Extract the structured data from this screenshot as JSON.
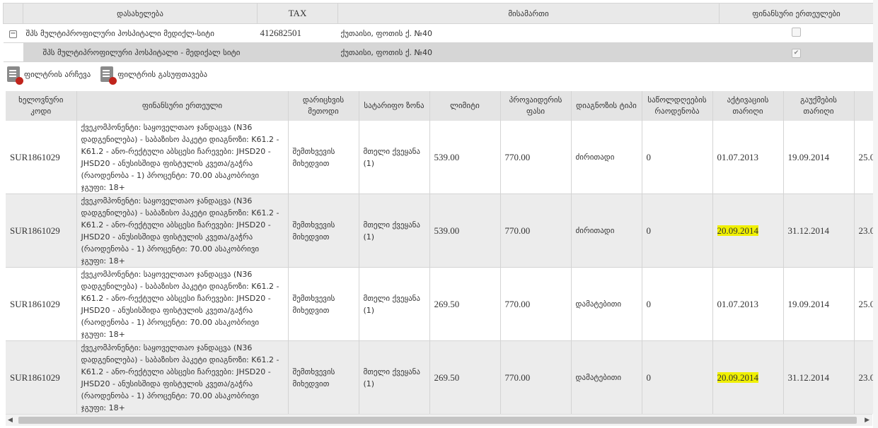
{
  "top_table": {
    "headers": [
      "დასახელება",
      "TAX",
      "მისამართი",
      "ფინანსური ერთეულები"
    ],
    "rows": [
      {
        "name": "შპს მულტიპროფილური ჰოსპიტალი მედიქლ-სიტი",
        "tax": "412682501",
        "address": "ქუთაისი, ფოთის ქ. №40",
        "checked": false
      },
      {
        "name": "შპს მულტიპროფილური ჰოსპიტალი - მედიქალ სიტი",
        "tax": "",
        "address": "ქუთაისი, ფოთის ქ. №40",
        "checked": true
      }
    ]
  },
  "filters": {
    "select_label": "ფილტრის არჩევა",
    "clear_label": "ფილტრის გასუფთავება"
  },
  "grid": {
    "headers": [
      "ხელოვნური კოდი",
      "ფინანსური ერთეული",
      "დარიცხვის მეთოდი",
      "სატარიფო ზონა",
      "ლიმიტი",
      "პროვაიდერის ფასი",
      "დიაგნოზის ტიპი",
      "საწოლდღეების რაოდენობა",
      "აქტივაციის თარიღი",
      "გაუქმების თარიღი",
      ""
    ],
    "rows": [
      {
        "code": "SUR1861029",
        "unit": "ქვეკომპონენტი: საყოველთაო ჯანდაცვა (N36 დადგენილება) - საბაზისო პაკეტი დიაგნოზი: K61.2 - K61.2 - ანო-რექტული აბსცესი ჩარევები: JHSD20 - JHSD20 - ანუსისშიდა ფისტულის კვეთა/გაჭრა (რაოდენობა - 1) პროცენტი: 70.00 ასაკობრივი ჯგუფი: 18+",
        "method": "შემთხვევის მიხედვით",
        "zone": "მთელი ქვეყანა (1)",
        "limit": "539.00",
        "price": "770.00",
        "diag_type": "ძირითადი",
        "bed_days": "0",
        "activation": "01.07.2013",
        "cancel": "19.09.2014",
        "next": "25.0",
        "highlight": false
      },
      {
        "code": "SUR1861029",
        "unit": "ქვეკომპონენტი: საყოველთაო ჯანდაცვა (N36 დადგენილება) - საბაზისო პაკეტი დიაგნოზი: K61.2 - K61.2 - ანო-რექტული აბსცესი ჩარევები: JHSD20 - JHSD20 - ანუსისშიდა ფისტულის კვეთა/გაჭრა (რაოდენობა - 1) პროცენტი: 70.00 ასაკობრივი ჯგუფი: 18+",
        "method": "შემთხვევის მიხედვით",
        "zone": "მთელი ქვეყანა (1)",
        "limit": "539.00",
        "price": "770.00",
        "diag_type": "ძირითადი",
        "bed_days": "0",
        "activation": "20.09.2014",
        "cancel": "31.12.2014",
        "next": "23.0",
        "highlight": true
      },
      {
        "code": "SUR1861029",
        "unit": "ქვეკომპონენტი: საყოველთაო ჯანდაცვა (N36 დადგენილება) - საბაზისო პაკეტი დიაგნოზი: K61.2 - K61.2 - ანო-რექტული აბსცესი ჩარევები: JHSD20 - JHSD20 - ანუსისშიდა ფისტულის კვეთა/გაჭრა (რაოდენობა - 1) პროცენტი: 70.00 ასაკობრივი ჯგუფი: 18+",
        "method": "შემთხვევის მიხედვით",
        "zone": "მთელი ქვეყანა (1)",
        "limit": "269.50",
        "price": "770.00",
        "diag_type": "დამატებითი",
        "bed_days": "0",
        "activation": "01.07.2013",
        "cancel": "19.09.2014",
        "next": "25.0",
        "highlight": false
      },
      {
        "code": "SUR1861029",
        "unit": "ქვეკომპონენტი: საყოველთაო ჯანდაცვა (N36 დადგენილება) - საბაზისო პაკეტი დიაგნოზი: K61.2 - K61.2 - ანო-რექტული აბსცესი ჩარევები: JHSD20 - JHSD20 - ანუსისშიდა ფისტულის კვეთა/გაჭრა (რაოდენობა - 1) პროცენტი: 70.00 ასაკობრივი ჯგუფი: 18+",
        "method": "შემთხვევის მიხედვით",
        "zone": "მთელი ქვეყანა (1)",
        "limit": "269.50",
        "price": "770.00",
        "diag_type": "დამატებითი",
        "bed_days": "0",
        "activation": "20.09.2014",
        "cancel": "31.12.2014",
        "next": "23.0",
        "highlight": true
      }
    ]
  },
  "colors": {
    "highlight": "#f0f000",
    "alt_row": "#ececec",
    "header_bg": "#e4e4e4",
    "icon_badge": "#c0241c"
  }
}
